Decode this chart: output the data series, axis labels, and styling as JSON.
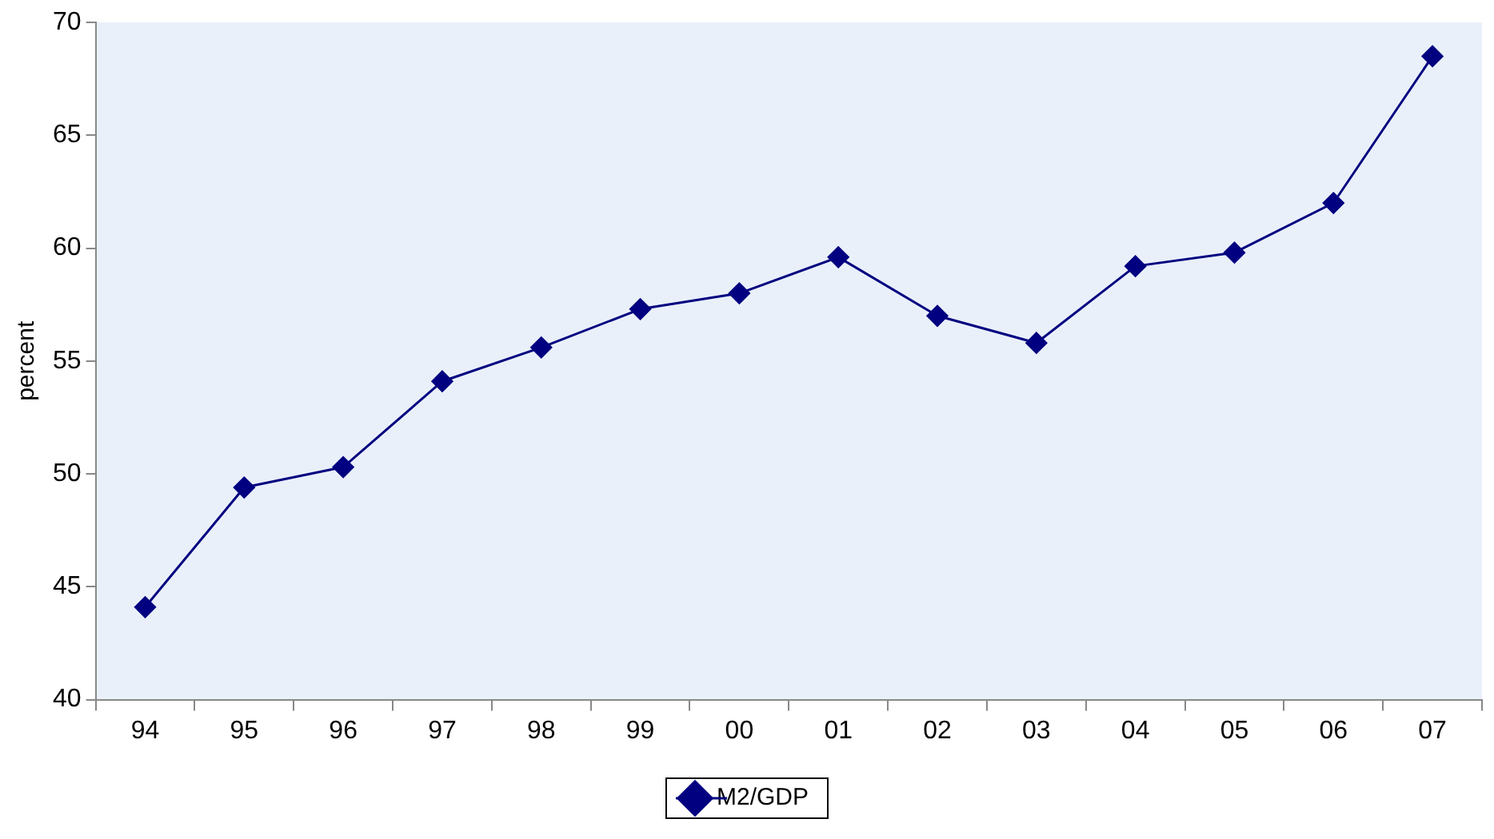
{
  "chart_data": {
    "type": "line",
    "ylabel": "percent",
    "categories": [
      "94",
      "95",
      "96",
      "97",
      "98",
      "99",
      "00",
      "01",
      "02",
      "03",
      "04",
      "05",
      "06",
      "07"
    ],
    "series": [
      {
        "name": "M2/GDP",
        "color": "#000080",
        "values": [
          44.1,
          49.4,
          50.3,
          54.1,
          55.6,
          57.3,
          58.0,
          59.6,
          57.0,
          55.8,
          59.2,
          59.8,
          62.0,
          68.5
        ]
      }
    ],
    "ylim": [
      40,
      70
    ],
    "yticks": [
      40,
      45,
      50,
      55,
      60,
      65,
      70
    ],
    "grid": false,
    "legend": "bottom",
    "marker": "diamond",
    "line_style": "solid"
  }
}
